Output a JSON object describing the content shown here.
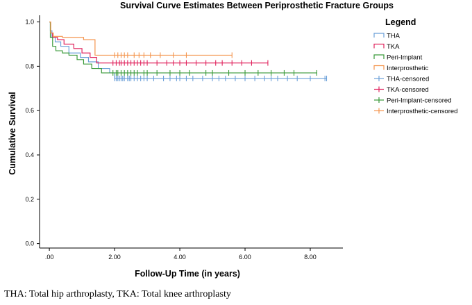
{
  "chart_data": {
    "type": "line",
    "subtype": "kaplan-meier-step",
    "title": "Survival Curve Estimates Between Periprosthetic Fracture Groups",
    "xlabel": "Follow-Up Time (in years)",
    "ylabel": "Cumulative Survival",
    "xlim": [
      -0.3,
      9.0
    ],
    "ylim": [
      -0.02,
      1.03
    ],
    "x_ticks": [
      0,
      2,
      4,
      6,
      8
    ],
    "x_tick_labels": [
      ".00",
      "2.00",
      "4.00",
      "6.00",
      "8.00"
    ],
    "y_ticks": [
      0,
      0.2,
      0.4,
      0.6,
      0.8,
      1.0
    ],
    "y_tick_labels": [
      "0.0",
      "0.2",
      "0.4",
      "0.6",
      "0.8",
      "1.0"
    ],
    "grid": false,
    "legend_title": "Legend",
    "legend_position": "right",
    "legend": [
      "THA",
      "TKA",
      "Peri-Implant",
      "Interprosthetic",
      "THA-censored",
      "TKA-censored",
      "Peri-Implant-censored",
      "Interprosthetic-censored"
    ],
    "series": [
      {
        "name": "THA",
        "color": "#6a9fd8",
        "x": [
          0,
          0.03,
          0.08,
          0.18,
          0.35,
          0.6,
          0.95,
          1.2,
          1.5,
          1.85,
          2.0
        ],
        "y": [
          1.0,
          0.96,
          0.93,
          0.91,
          0.89,
          0.86,
          0.84,
          0.82,
          0.79,
          0.77,
          0.745
        ],
        "end_x": 8.5,
        "censored": [
          2.0,
          2.05,
          2.1,
          2.15,
          2.2,
          2.25,
          2.3,
          2.4,
          2.45,
          2.5,
          2.6,
          2.7,
          2.8,
          2.9,
          3.0,
          3.2,
          3.5,
          3.7,
          3.9,
          4.0,
          4.2,
          4.4,
          4.7,
          5.0,
          5.2,
          5.4,
          5.7,
          6.0,
          6.3,
          6.6,
          6.8,
          7.0,
          7.3,
          7.6,
          8.0,
          8.45,
          8.5
        ]
      },
      {
        "name": "TKA",
        "color": "#e0245e",
        "x": [
          0,
          0.04,
          0.1,
          0.25,
          0.45,
          0.75,
          1.0,
          1.25,
          1.45
        ],
        "y": [
          1.0,
          0.95,
          0.93,
          0.92,
          0.9,
          0.88,
          0.86,
          0.84,
          0.815
        ],
        "end_x": 6.7,
        "censored": [
          1.95,
          2.05,
          2.15,
          2.2,
          2.3,
          2.4,
          2.5,
          2.6,
          2.7,
          2.8,
          2.9,
          3.0,
          3.3,
          3.6,
          3.8,
          4.0,
          4.2,
          4.5,
          4.8,
          5.1,
          5.3,
          5.6,
          5.9,
          6.2,
          6.7
        ]
      },
      {
        "name": "Peri-Implant",
        "color": "#3a9a3a",
        "x": [
          0,
          0.03,
          0.1,
          0.2,
          0.4,
          0.6,
          0.85,
          1.05,
          1.3,
          1.6
        ],
        "y": [
          1.0,
          0.93,
          0.89,
          0.87,
          0.86,
          0.85,
          0.83,
          0.81,
          0.79,
          0.77
        ],
        "end_x": 8.2,
        "censored": [
          1.95,
          2.05,
          2.1,
          2.2,
          2.3,
          2.4,
          2.5,
          2.6,
          2.7,
          2.9,
          3.0,
          3.3,
          3.7,
          4.0,
          4.3,
          4.8,
          5.0,
          5.5,
          6.0,
          6.4,
          6.8,
          7.2,
          7.5,
          8.2
        ]
      },
      {
        "name": "Interprosthetic",
        "color": "#f4944c",
        "x": [
          0,
          0.04,
          0.12,
          0.4,
          1.05,
          1.4
        ],
        "y": [
          1.0,
          0.95,
          0.935,
          0.93,
          0.92,
          0.85
        ],
        "end_x": 5.6,
        "censored": [
          2.0,
          2.1,
          2.2,
          2.3,
          2.4,
          2.6,
          2.75,
          2.9,
          3.1,
          3.4,
          3.8,
          4.2,
          5.6
        ]
      }
    ]
  },
  "caption": "THA: Total hip arthroplasty, TKA: Total knee arthroplasty"
}
